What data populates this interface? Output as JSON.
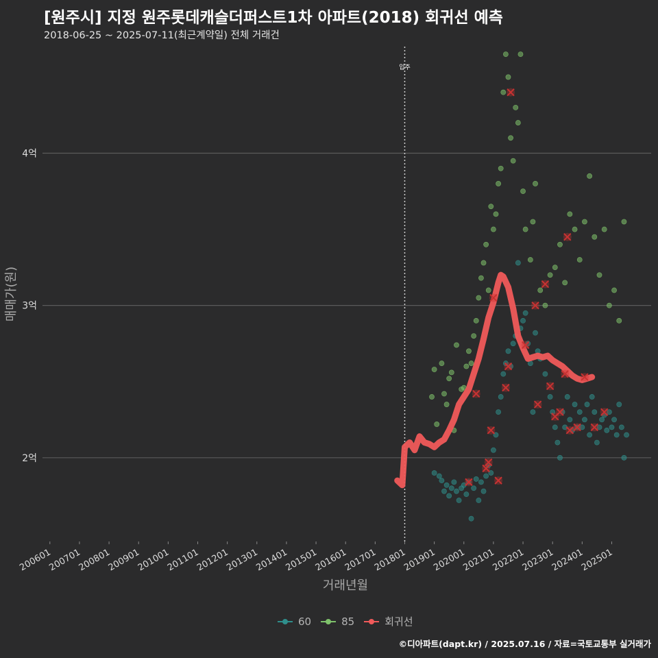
{
  "title": "[원주시] 지정 원주롯데캐슬더퍼스트1차 아파트(2018) 회귀선 예측",
  "subtitle": "2018-06-25 ~ 2025-07-11(최근계약일) 전체 거래건",
  "caption": "©디아파트(dapt.kr) / 2025.07.16 / 자료=국토교통부 실거래가",
  "colors": {
    "background": "#2b2b2c",
    "grid": "#5b5b5b",
    "series_60": "#2f8f8c",
    "series_85": "#7fc26b",
    "regression": "#f05a5a",
    "marker": "#c83232"
  },
  "legend": {
    "items": [
      {
        "label": "60",
        "color": "#2f8f8c"
      },
      {
        "label": "85",
        "color": "#7fc26b"
      },
      {
        "label": "회귀선",
        "color": "#f05a5a"
      }
    ]
  },
  "chart_data": {
    "type": "scatter",
    "title": "[원주시] 지정 원주롯데캐슬더퍼스트1차 아파트(2018) 회귀선 예측",
    "subtitle": "2018-06-25 ~ 2025-07-11(최근계약일) 전체 거래건",
    "xlabel": "거래년월",
    "ylabel": "매매가(원)",
    "x_range": [
      "2005-10",
      "2026-05"
    ],
    "ylim": [
      1.45,
      4.7
    ],
    "y_unit": "억",
    "x_ticks": [
      "200601",
      "200701",
      "200801",
      "200901",
      "201001",
      "201101",
      "201201",
      "201301",
      "201401",
      "201501",
      "201601",
      "201701",
      "201801",
      "201901",
      "202001",
      "202101",
      "202201",
      "202301",
      "202401",
      "202501"
    ],
    "y_ticks": [
      2,
      3,
      4
    ],
    "y_tick_labels": [
      "2억",
      "3억",
      "4억"
    ],
    "grid": "horizontal",
    "legend_position": "bottom",
    "annotation": {
      "x": "2018-01",
      "label": "입주",
      "style": "dotted vertical line"
    },
    "series": [
      {
        "name": "60",
        "points": [
          [
            "2019-01",
            1.9
          ],
          [
            "2019-03",
            1.88
          ],
          [
            "2019-04",
            1.85
          ],
          [
            "2019-05",
            1.78
          ],
          [
            "2019-06",
            1.82
          ],
          [
            "2019-07",
            1.75
          ],
          [
            "2019-08",
            1.8
          ],
          [
            "2019-09",
            1.84
          ],
          [
            "2019-10",
            1.78
          ],
          [
            "2019-11",
            1.72
          ],
          [
            "2019-12",
            1.8
          ],
          [
            "2020-01",
            1.82
          ],
          [
            "2020-02",
            1.76
          ],
          [
            "2020-03",
            1.84
          ],
          [
            "2020-04",
            1.6
          ],
          [
            "2020-05",
            1.8
          ],
          [
            "2020-06",
            1.86
          ],
          [
            "2020-07",
            1.72
          ],
          [
            "2020-08",
            1.84
          ],
          [
            "2020-09",
            1.78
          ],
          [
            "2020-10",
            1.88
          ],
          [
            "2020-11",
            1.95
          ],
          [
            "2020-12",
            1.9
          ],
          [
            "2021-01",
            2.05
          ],
          [
            "2021-02",
            2.15
          ],
          [
            "2021-03",
            2.3
          ],
          [
            "2021-04",
            2.4
          ],
          [
            "2021-05",
            2.55
          ],
          [
            "2021-06",
            2.62
          ],
          [
            "2021-07",
            2.7
          ],
          [
            "2021-08",
            2.6
          ],
          [
            "2021-09",
            2.75
          ],
          [
            "2021-10",
            2.8
          ],
          [
            "2021-11",
            3.28
          ],
          [
            "2021-12",
            2.85
          ],
          [
            "2022-01",
            2.9
          ],
          [
            "2022-02",
            2.95
          ],
          [
            "2022-03",
            2.75
          ],
          [
            "2022-04",
            2.62
          ],
          [
            "2022-05",
            2.3
          ],
          [
            "2022-06",
            2.82
          ],
          [
            "2022-07",
            2.7
          ],
          [
            "2022-08",
            2.65
          ],
          [
            "2022-10",
            2.55
          ],
          [
            "2022-12",
            2.4
          ],
          [
            "2023-01",
            2.3
          ],
          [
            "2023-02",
            2.2
          ],
          [
            "2023-03",
            2.1
          ],
          [
            "2023-04",
            2.0
          ],
          [
            "2023-05",
            2.3
          ],
          [
            "2023-06",
            2.2
          ],
          [
            "2023-07",
            2.4
          ],
          [
            "2023-08",
            2.25
          ],
          [
            "2023-09",
            2.18
          ],
          [
            "2023-10",
            2.35
          ],
          [
            "2023-11",
            2.2
          ],
          [
            "2023-12",
            2.3
          ],
          [
            "2024-01",
            2.2
          ],
          [
            "2024-02",
            2.25
          ],
          [
            "2024-03",
            2.35
          ],
          [
            "2024-04",
            2.15
          ],
          [
            "2024-05",
            2.4
          ],
          [
            "2024-06",
            2.3
          ],
          [
            "2024-07",
            2.1
          ],
          [
            "2024-08",
            2.2
          ],
          [
            "2024-09",
            2.25
          ],
          [
            "2024-10",
            2.28
          ],
          [
            "2024-11",
            2.18
          ],
          [
            "2024-12",
            2.3
          ],
          [
            "2025-01",
            2.2
          ],
          [
            "2025-02",
            2.25
          ],
          [
            "2025-03",
            2.15
          ],
          [
            "2025-04",
            2.35
          ],
          [
            "2025-05",
            2.2
          ],
          [
            "2025-06",
            2.0
          ],
          [
            "2025-07",
            2.15
          ]
        ]
      },
      {
        "name": "85",
        "points": [
          [
            "2018-12",
            2.4
          ],
          [
            "2019-01",
            2.58
          ],
          [
            "2019-02",
            2.22
          ],
          [
            "2019-04",
            2.62
          ],
          [
            "2019-05",
            2.42
          ],
          [
            "2019-06",
            2.35
          ],
          [
            "2019-07",
            2.52
          ],
          [
            "2019-08",
            2.56
          ],
          [
            "2019-09",
            2.18
          ],
          [
            "2019-10",
            2.74
          ],
          [
            "2019-12",
            2.45
          ],
          [
            "2020-01",
            2.46
          ],
          [
            "2020-02",
            2.6
          ],
          [
            "2020-03",
            2.7
          ],
          [
            "2020-04",
            2.62
          ],
          [
            "2020-05",
            2.8
          ],
          [
            "2020-06",
            2.9
          ],
          [
            "2020-07",
            3.05
          ],
          [
            "2020-08",
            3.18
          ],
          [
            "2020-09",
            3.28
          ],
          [
            "2020-10",
            3.4
          ],
          [
            "2020-11",
            3.1
          ],
          [
            "2020-12",
            3.65
          ],
          [
            "2021-01",
            3.5
          ],
          [
            "2021-02",
            3.6
          ],
          [
            "2021-03",
            3.8
          ],
          [
            "2021-04",
            3.9
          ],
          [
            "2021-05",
            4.4
          ],
          [
            "2021-06",
            4.65
          ],
          [
            "2021-07",
            4.5
          ],
          [
            "2021-08",
            4.1
          ],
          [
            "2021-09",
            3.95
          ],
          [
            "2021-10",
            4.3
          ],
          [
            "2021-11",
            4.2
          ],
          [
            "2021-12",
            4.65
          ],
          [
            "2022-01",
            3.75
          ],
          [
            "2022-02",
            3.5
          ],
          [
            "2022-04",
            3.3
          ],
          [
            "2022-05",
            3.55
          ],
          [
            "2022-06",
            3.8
          ],
          [
            "2022-08",
            3.1
          ],
          [
            "2022-10",
            3.0
          ],
          [
            "2022-12",
            3.2
          ],
          [
            "2023-02",
            3.25
          ],
          [
            "2023-04",
            3.4
          ],
          [
            "2023-06",
            3.15
          ],
          [
            "2023-08",
            3.6
          ],
          [
            "2023-10",
            3.5
          ],
          [
            "2023-12",
            3.3
          ],
          [
            "2024-02",
            3.55
          ],
          [
            "2024-04",
            3.85
          ],
          [
            "2024-06",
            3.45
          ],
          [
            "2024-08",
            3.2
          ],
          [
            "2024-10",
            3.5
          ],
          [
            "2024-12",
            3.0
          ],
          [
            "2025-02",
            3.1
          ],
          [
            "2025-04",
            2.9
          ],
          [
            "2025-06",
            3.55
          ]
        ]
      },
      {
        "name": "회귀선",
        "points": [
          [
            "2017-10",
            1.85
          ],
          [
            "2017-12",
            1.82
          ],
          [
            "2018-01",
            2.07
          ],
          [
            "2018-03",
            2.1
          ],
          [
            "2018-05",
            2.05
          ],
          [
            "2018-07",
            2.14
          ],
          [
            "2018-09",
            2.1
          ],
          [
            "2018-11",
            2.09
          ],
          [
            "2019-01",
            2.07
          ],
          [
            "2019-03",
            2.1
          ],
          [
            "2019-05",
            2.12
          ],
          [
            "2019-07",
            2.18
          ],
          [
            "2019-09",
            2.25
          ],
          [
            "2019-11",
            2.35
          ],
          [
            "2020-01",
            2.4
          ],
          [
            "2020-03",
            2.45
          ],
          [
            "2020-05",
            2.55
          ],
          [
            "2020-07",
            2.65
          ],
          [
            "2020-09",
            2.78
          ],
          [
            "2020-11",
            2.92
          ],
          [
            "2021-01",
            3.02
          ],
          [
            "2021-03",
            3.15
          ],
          [
            "2021-04",
            3.2
          ],
          [
            "2021-05",
            3.19
          ],
          [
            "2021-07",
            3.12
          ],
          [
            "2021-09",
            2.98
          ],
          [
            "2021-11",
            2.8
          ],
          [
            "2022-01",
            2.72
          ],
          [
            "2022-03",
            2.65
          ],
          [
            "2022-05",
            2.66
          ],
          [
            "2022-07",
            2.67
          ],
          [
            "2022-09",
            2.66
          ],
          [
            "2022-11",
            2.67
          ],
          [
            "2023-01",
            2.64
          ],
          [
            "2023-03",
            2.62
          ],
          [
            "2023-05",
            2.6
          ],
          [
            "2023-07",
            2.57
          ],
          [
            "2023-09",
            2.54
          ],
          [
            "2023-11",
            2.52
          ],
          [
            "2024-01",
            2.51
          ],
          [
            "2024-03",
            2.52
          ],
          [
            "2024-05",
            2.53
          ]
        ]
      }
    ],
    "highlighted_points": [
      [
        "2020-03",
        1.84
      ],
      [
        "2020-06",
        2.42
      ],
      [
        "2020-10",
        1.93
      ],
      [
        "2020-11",
        1.97
      ],
      [
        "2020-12",
        2.18
      ],
      [
        "2021-01",
        3.05
      ],
      [
        "2021-03",
        1.85
      ],
      [
        "2021-06",
        2.46
      ],
      [
        "2021-07",
        2.6
      ],
      [
        "2021-08",
        4.4
      ],
      [
        "2022-02",
        2.74
      ],
      [
        "2022-06",
        3.0
      ],
      [
        "2022-07",
        2.35
      ],
      [
        "2022-10",
        3.14
      ],
      [
        "2022-12",
        2.47
      ],
      [
        "2023-02",
        2.27
      ],
      [
        "2023-04",
        2.3
      ],
      [
        "2023-06",
        2.55
      ],
      [
        "2023-07",
        3.45
      ],
      [
        "2023-08",
        2.18
      ],
      [
        "2023-11",
        2.2
      ],
      [
        "2024-02",
        2.53
      ],
      [
        "2024-06",
        2.2
      ],
      [
        "2024-10",
        2.3
      ]
    ]
  }
}
